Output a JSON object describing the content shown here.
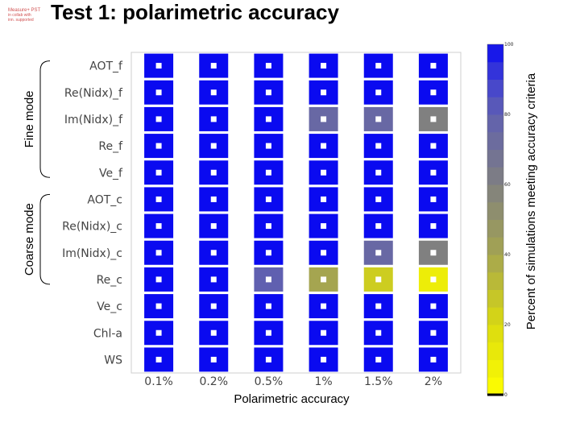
{
  "logo": {
    "lines": [
      "Measure+ PST",
      "in collab with",
      "inn. supported"
    ]
  },
  "title": "Test 1: polarimetric accuracy",
  "chart_data": {
    "type": "heatmap",
    "title": "Test 1: polarimetric accuracy",
    "xlabel": "Polarimetric accuracy",
    "colorbar_label": "Percent of simulations meeting accuracy criteria",
    "colorbar_range": [
      0,
      100
    ],
    "colorbar_ticks": [
      0,
      20,
      40,
      60,
      80,
      100
    ],
    "x": [
      "0.1%",
      "0.2%",
      "0.5%",
      "1%",
      "1.5%",
      "2%"
    ],
    "y": [
      "AOT_f",
      "Re(Nidx)_f",
      "Im(Nidx)_f",
      "Re_f",
      "Ve_f",
      "AOT_c",
      "Re(Nidx)_c",
      "Im(Nidx)_c",
      "Re_c",
      "Ve_c",
      "Chl-a",
      "WS"
    ],
    "groups": [
      {
        "label": "Fine mode",
        "rows": [
          "AOT_f",
          "Ve_f"
        ]
      },
      {
        "label": "Coarse mode",
        "rows": [
          "AOT_c",
          "Re_c"
        ]
      }
    ],
    "values": [
      [
        100,
        100,
        100,
        100,
        100,
        100
      ],
      [
        100,
        100,
        100,
        100,
        100,
        100
      ],
      [
        100,
        100,
        100,
        75,
        75,
        60
      ],
      [
        100,
        100,
        100,
        100,
        100,
        100
      ],
      [
        100,
        100,
        100,
        100,
        100,
        100
      ],
      [
        100,
        100,
        100,
        100,
        100,
        100
      ],
      [
        100,
        100,
        100,
        100,
        100,
        100
      ],
      [
        100,
        100,
        100,
        100,
        75,
        60
      ],
      [
        100,
        100,
        80,
        40,
        25,
        10
      ],
      [
        100,
        100,
        100,
        100,
        100,
        100
      ],
      [
        100,
        100,
        100,
        100,
        100,
        100
      ],
      [
        100,
        100,
        100,
        100,
        100,
        100
      ]
    ]
  }
}
